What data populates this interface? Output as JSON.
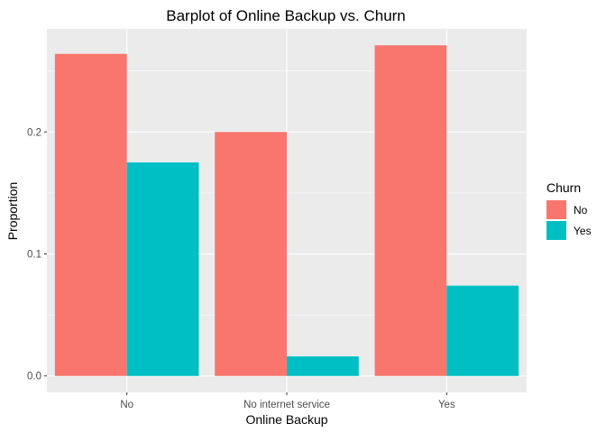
{
  "chart_data": {
    "type": "bar",
    "title": "Barplot of Online Backup vs. Churn",
    "xlabel": "Online Backup",
    "ylabel": "Proportion",
    "categories": [
      "No",
      "No internet service",
      "Yes"
    ],
    "series": [
      {
        "name": "No",
        "color": "#F8766D",
        "values": [
          0.264,
          0.2,
          0.271
        ]
      },
      {
        "name": "Yes",
        "color": "#00BFC4",
        "values": [
          0.175,
          0.016,
          0.074
        ]
      }
    ],
    "ylim": [
      -0.0135,
      0.2845
    ],
    "yticks": [
      0.0,
      0.1,
      0.2
    ],
    "ytick_labels": [
      "0.0",
      "0.1",
      "0.2"
    ],
    "grid": true,
    "legend": {
      "title": "Churn",
      "placement": "right"
    },
    "panel_color": "#EBEBEB",
    "grid_color": "#FFFFFF"
  }
}
